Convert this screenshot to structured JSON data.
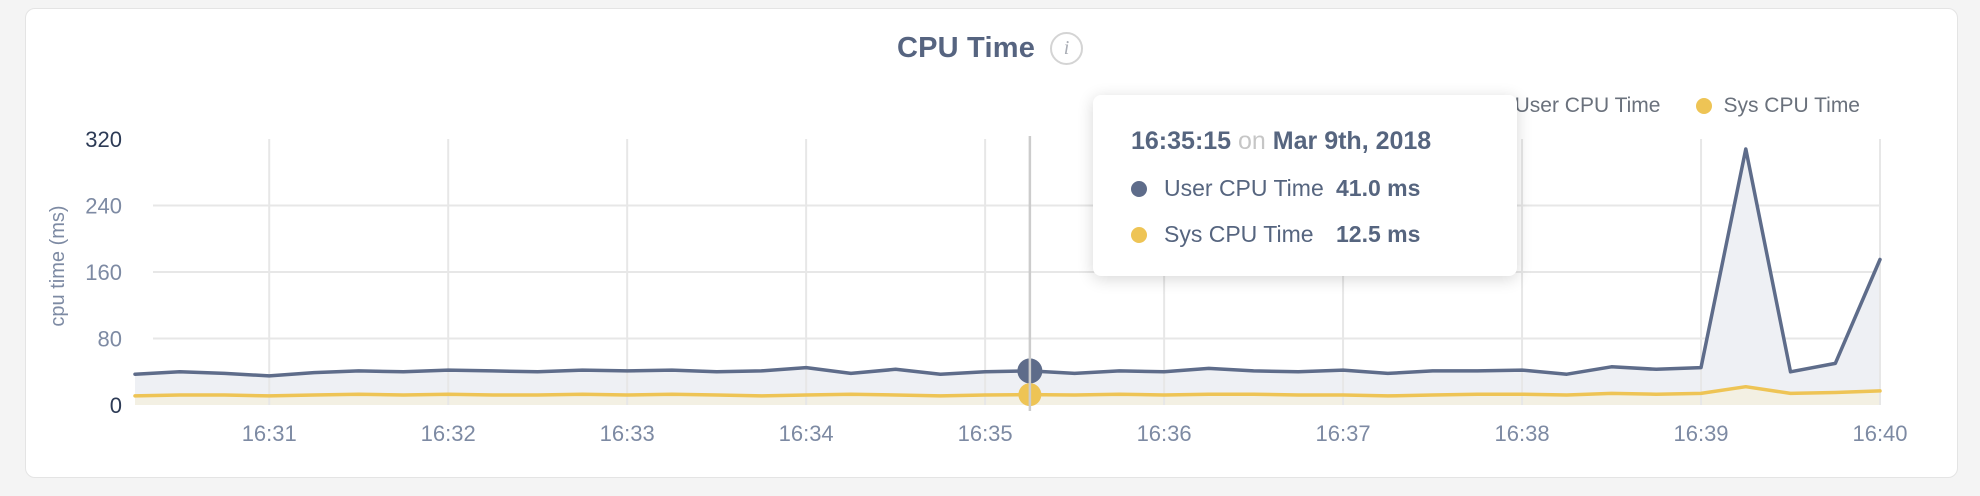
{
  "page": {
    "background": "#f4f4f4",
    "card_background": "#ffffff"
  },
  "header": {
    "title": "CPU Time",
    "info_icon_glyph": "i"
  },
  "legend": {
    "items": [
      {
        "label": "User CPU Time",
        "color": "#5e6c8a"
      },
      {
        "label": "Sys CPU Time",
        "color": "#eec455"
      }
    ]
  },
  "tooltip": {
    "time": "16:35:15",
    "connector": "on",
    "date": "Mar 9th, 2018",
    "rows": [
      {
        "label": "User CPU Time",
        "value": "41.0 ms",
        "color": "#5e6c8a"
      },
      {
        "label": "Sys CPU Time",
        "value": "12.5 ms",
        "color": "#eec455"
      }
    ]
  },
  "chart_data": {
    "type": "line",
    "title": "CPU Time",
    "xlabel": "",
    "ylabel": "cpu time (ms)",
    "ylim": [
      0,
      320
    ],
    "yticks": [
      0,
      80,
      160,
      240,
      320
    ],
    "xticks": [
      "16:31",
      "16:32",
      "16:33",
      "16:34",
      "16:35",
      "16:36",
      "16:37",
      "16:38",
      "16:39",
      "16:40"
    ],
    "grid": true,
    "legend_position": "top-right",
    "colors": {
      "grid": "#e7e7e7",
      "crosshair": "#cccccc",
      "axis_tick": "#7d8aa3",
      "axis_tick_extreme": "#2c3a55"
    },
    "x": [
      "16:30:15",
      "16:30:30",
      "16:30:45",
      "16:31:00",
      "16:31:15",
      "16:31:30",
      "16:31:45",
      "16:32:00",
      "16:32:15",
      "16:32:30",
      "16:32:45",
      "16:33:00",
      "16:33:15",
      "16:33:30",
      "16:33:45",
      "16:34:00",
      "16:34:15",
      "16:34:30",
      "16:34:45",
      "16:35:00",
      "16:35:15",
      "16:35:30",
      "16:35:45",
      "16:36:00",
      "16:36:15",
      "16:36:30",
      "16:36:45",
      "16:37:00",
      "16:37:15",
      "16:37:30",
      "16:37:45",
      "16:38:00",
      "16:38:15",
      "16:38:30",
      "16:38:45",
      "16:39:00",
      "16:39:15",
      "16:39:30",
      "16:39:45",
      "16:40:00"
    ],
    "series": [
      {
        "name": "User CPU Time",
        "color": "#5e6c8a",
        "fill": "#eef0f4",
        "values": [
          37,
          40,
          38,
          35,
          39,
          41,
          40,
          42,
          41,
          40,
          42,
          41,
          42,
          40,
          41,
          45,
          38,
          43,
          37,
          40,
          41,
          38,
          41,
          40,
          44,
          41,
          40,
          42,
          38,
          41,
          41,
          42,
          37,
          46,
          43,
          45,
          308,
          40,
          50,
          175
        ]
      },
      {
        "name": "Sys CPU Time",
        "color": "#eec455",
        "fill": "#f3f0e3",
        "values": [
          11,
          12,
          12,
          11,
          12,
          13,
          12,
          13,
          12,
          12,
          13,
          12,
          13,
          12,
          11,
          12,
          13,
          12,
          11,
          12,
          12.5,
          12,
          13,
          12,
          13,
          13,
          12,
          12,
          11,
          12,
          13,
          13,
          12,
          14,
          13,
          14,
          22,
          14,
          15,
          17
        ]
      }
    ],
    "hover": {
      "index": 20,
      "time": "16:35:15",
      "values": [
        41.0,
        12.5
      ]
    }
  }
}
